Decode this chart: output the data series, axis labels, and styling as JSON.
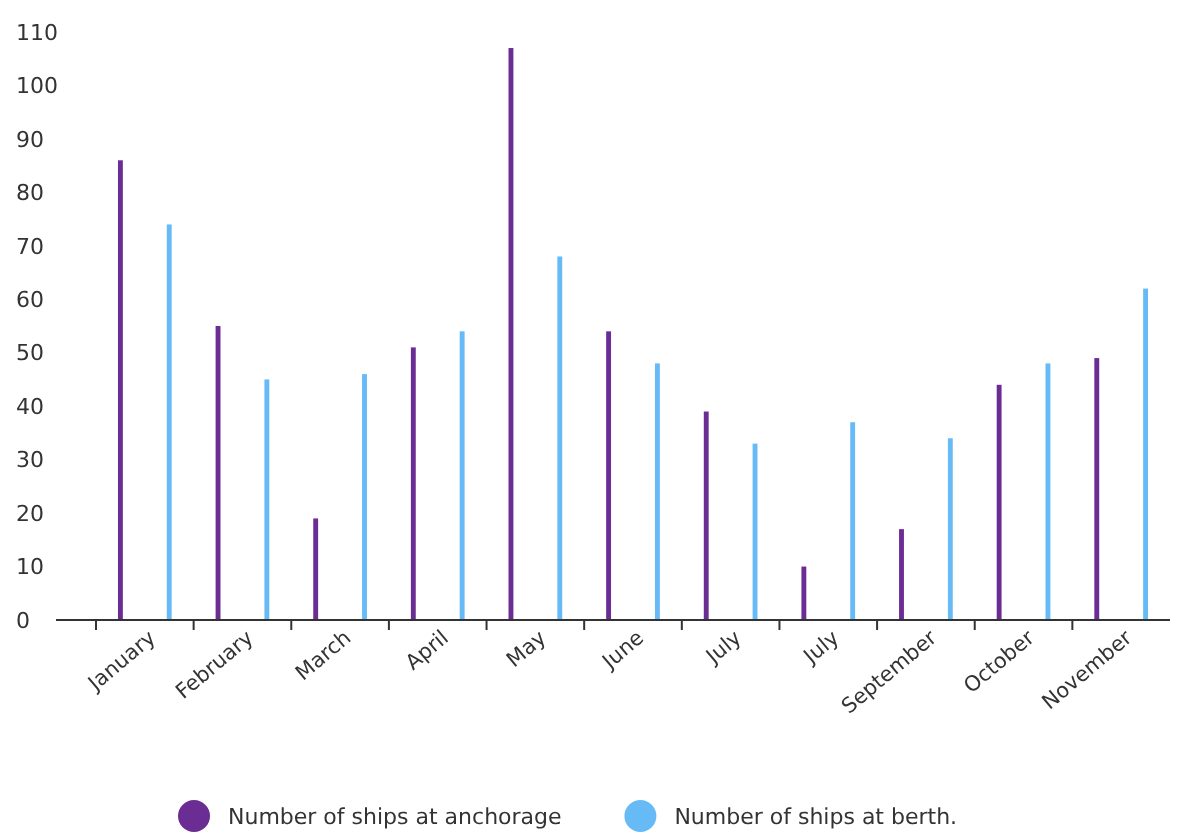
{
  "chart_data": {
    "type": "bar",
    "categories": [
      "January",
      "February",
      "March",
      "April",
      "May",
      "June",
      "July",
      "July",
      "September",
      "October",
      "November"
    ],
    "series": [
      {
        "name": "Number of ships at anchorage",
        "color": "#6b2d94",
        "values": [
          86,
          55,
          19,
          51,
          107,
          54,
          39,
          10,
          17,
          44,
          49
        ]
      },
      {
        "name": "Number of ships at berth.",
        "color": "#66bbf7",
        "values": [
          74,
          45,
          46,
          54,
          68,
          48,
          33,
          37,
          34,
          48,
          62
        ]
      }
    ],
    "ylim": [
      0,
      110
    ],
    "yticks": [
      0,
      10,
      20,
      30,
      40,
      50,
      60,
      70,
      80,
      90,
      100,
      110
    ],
    "grid": false,
    "legend": "bottom"
  }
}
